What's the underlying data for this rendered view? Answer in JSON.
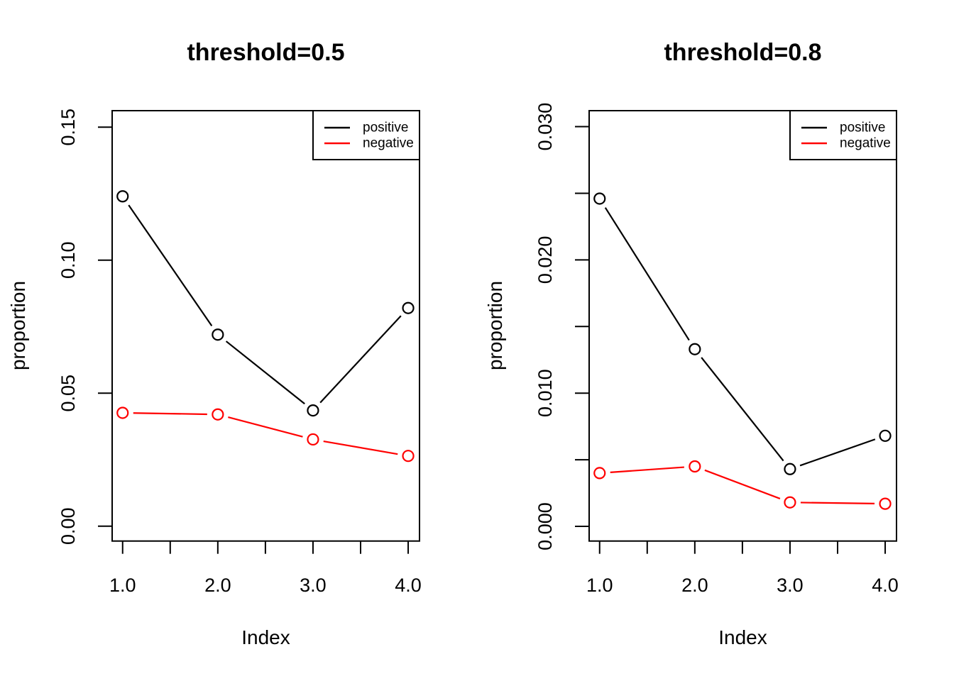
{
  "figure": {
    "background": "#FFFFFF",
    "axis_color": "#000000",
    "marker": "open-circle",
    "line_type": "segments-with-point-gaps"
  },
  "chart_data": [
    {
      "type": "line",
      "title": "threshold=0.5",
      "xlabel": "Index",
      "ylabel": "proportion",
      "x": [
        1,
        2,
        3,
        4
      ],
      "series": [
        {
          "name": "positive",
          "color": "#000000",
          "values": [
            0.124,
            0.072,
            0.0435,
            0.082
          ]
        },
        {
          "name": "negative",
          "color": "#FF0000",
          "values": [
            0.0426,
            0.042,
            0.0326,
            0.0264
          ]
        }
      ],
      "x_ticks": {
        "values": [
          1,
          1.5,
          2,
          2.5,
          3,
          3.5,
          4
        ],
        "labels": [
          "1.0",
          "",
          "2.0",
          "",
          "3.0",
          "",
          "4.0"
        ]
      },
      "y_ticks": {
        "values": [
          0,
          0.05,
          0.1,
          0.15
        ],
        "labels": [
          "0.00",
          "0.05",
          "0.10",
          "0.15"
        ]
      },
      "xlim": [
        0.89,
        4.119
      ],
      "ylim": [
        -0.0056,
        0.1562
      ],
      "grid": false,
      "legend": {
        "position": "top-right",
        "entries": [
          "positive",
          "negative"
        ]
      }
    },
    {
      "type": "line",
      "title": "threshold=0.8",
      "xlabel": "Index",
      "ylabel": "proportion",
      "x": [
        1,
        2,
        3,
        4
      ],
      "series": [
        {
          "name": "positive",
          "color": "#000000",
          "values": [
            0.0246,
            0.0133,
            0.0043,
            0.0068
          ]
        },
        {
          "name": "negative",
          "color": "#FF0000",
          "values": [
            0.004,
            0.0045,
            0.0018,
            0.0017
          ]
        }
      ],
      "x_ticks": {
        "values": [
          1,
          1.5,
          2,
          2.5,
          3,
          3.5,
          4
        ],
        "labels": [
          "1.0",
          "",
          "2.0",
          "",
          "3.0",
          "",
          "4.0"
        ]
      },
      "y_ticks": {
        "values": [
          0,
          0.005,
          0.01,
          0.015,
          0.02,
          0.025,
          0.03
        ],
        "labels": [
          "0.000",
          "",
          "0.010",
          "",
          "0.020",
          "",
          "0.030"
        ]
      },
      "xlim": [
        0.89,
        4.119
      ],
      "ylim": [
        -0.0011,
        0.0312
      ],
      "grid": false,
      "legend": {
        "position": "top-right",
        "entries": [
          "positive",
          "negative"
        ]
      }
    }
  ]
}
